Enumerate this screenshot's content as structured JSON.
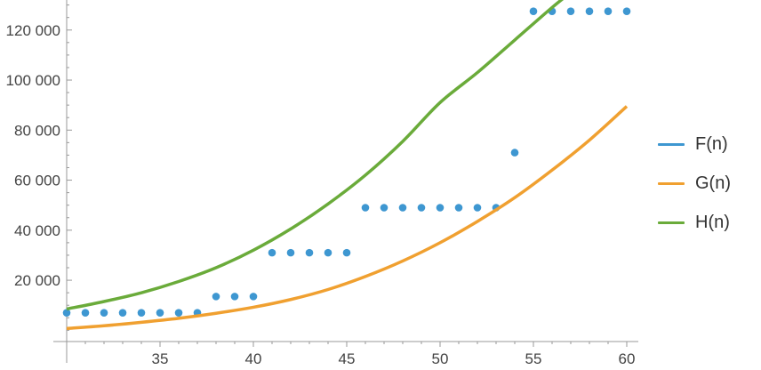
{
  "chart_data": {
    "type": "line",
    "xlim": [
      30,
      60.5
    ],
    "ylim": [
      -4500,
      132000
    ],
    "x_ticks": [
      35,
      40,
      45,
      50,
      55,
      60
    ],
    "x_tick_labels": [
      "35",
      "40",
      "45",
      "50",
      "55",
      "60"
    ],
    "y_ticks": [
      20000,
      40000,
      60000,
      80000,
      100000,
      120000
    ],
    "y_tick_labels": [
      "20 000",
      "40 000",
      "60 000",
      "80 000",
      "100 000",
      "120 000"
    ],
    "legend_position": "right",
    "series": [
      {
        "name": "F(n)",
        "style": "points",
        "color": "#3e97d1",
        "x": [
          30,
          31,
          32,
          33,
          34,
          35,
          36,
          37,
          38,
          39,
          40,
          41,
          42,
          43,
          44,
          45,
          46,
          47,
          48,
          49,
          50,
          51,
          52,
          53,
          54,
          55,
          56,
          57,
          58,
          59,
          60
        ],
        "y": [
          7000,
          7000,
          7000,
          7000,
          7000,
          7000,
          7000,
          7000,
          13500,
          13500,
          13500,
          31000,
          31000,
          31000,
          31000,
          31000,
          49000,
          49000,
          49000,
          49000,
          49000,
          49000,
          49000,
          49000,
          71000,
          127500,
          127500,
          127500,
          127500,
          127500,
          127500
        ]
      },
      {
        "name": "G(n)",
        "style": "line",
        "color": "#f0a030",
        "x": [
          30,
          32,
          34,
          36,
          38,
          40,
          42,
          44,
          46,
          48,
          50,
          52,
          54,
          56,
          58,
          60
        ],
        "y": [
          700,
          1800,
          3200,
          4800,
          6800,
          9200,
          12300,
          16300,
          21500,
          27700,
          35000,
          43500,
          53000,
          64000,
          76000,
          89500
        ]
      },
      {
        "name": "H(n)",
        "style": "line",
        "color": "#6aab3a",
        "x": [
          30,
          32,
          34,
          36,
          38,
          40,
          42,
          44,
          46,
          48,
          50,
          52,
          54,
          56,
          57
        ],
        "y": [
          8500,
          11500,
          15000,
          19500,
          25000,
          32000,
          40500,
          50500,
          62000,
          75500,
          91000,
          103000,
          116000,
          129000,
          135000
        ]
      }
    ]
  }
}
